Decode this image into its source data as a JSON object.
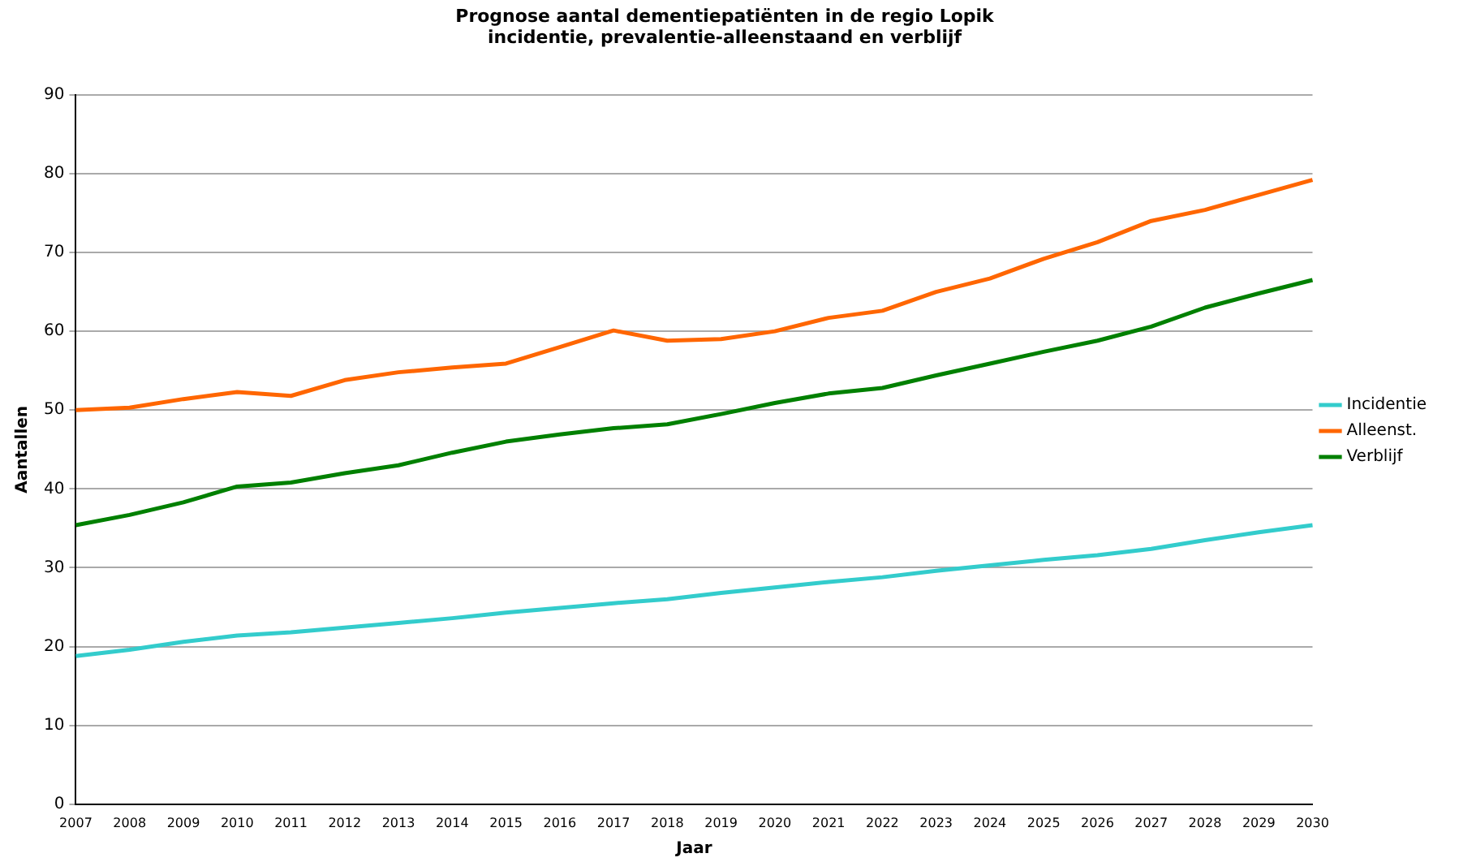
{
  "chart_data": {
    "type": "line",
    "title": "Prognose aantal dementiepatiënten in de regio Lopik\nincidentie, prevalentie-alleenstaand en verblijf",
    "xlabel": "Jaar",
    "ylabel": "Aantallen",
    "categories": [
      "2007",
      "2008",
      "2009",
      "2010",
      "2011",
      "2012",
      "2013",
      "2014",
      "2015",
      "2016",
      "2017",
      "2018",
      "2019",
      "2020",
      "2021",
      "2022",
      "2023",
      "2024",
      "2025",
      "2026",
      "2027",
      "2028",
      "2029",
      "2030"
    ],
    "series": [
      {
        "name": "Incidentie",
        "color": "#33cccc",
        "values": [
          18.8,
          19.6,
          20.6,
          21.4,
          21.8,
          22.4,
          23.0,
          23.6,
          24.3,
          24.9,
          25.5,
          26.0,
          26.8,
          27.5,
          28.2,
          28.8,
          29.6,
          30.3,
          31.0,
          31.6,
          32.4,
          33.5,
          34.5,
          35.4
        ]
      },
      {
        "name": "Alleenst.",
        "color": "#ff6600",
        "values": [
          50.0,
          50.3,
          51.4,
          52.3,
          51.8,
          53.8,
          54.8,
          55.4,
          55.9,
          58.0,
          60.1,
          58.8,
          59.0,
          60.0,
          61.7,
          62.6,
          65.0,
          66.7,
          69.2,
          71.3,
          74.0,
          75.4,
          77.3,
          79.2
        ]
      },
      {
        "name": "Verblijf",
        "color": "#008000",
        "values": [
          35.4,
          36.7,
          38.3,
          40.3,
          40.8,
          42.0,
          43.0,
          44.6,
          46.0,
          46.9,
          47.7,
          48.2,
          49.5,
          50.9,
          52.1,
          52.8,
          54.4,
          55.9,
          57.4,
          58.8,
          60.6,
          63.0,
          64.8,
          66.5
        ]
      }
    ],
    "ylim": [
      0,
      90
    ],
    "yticks": [
      0,
      10,
      20,
      30,
      40,
      50,
      60,
      70,
      80,
      90
    ],
    "grid": "y",
    "legend": "right",
    "marker": "none",
    "line_style": "solid"
  }
}
